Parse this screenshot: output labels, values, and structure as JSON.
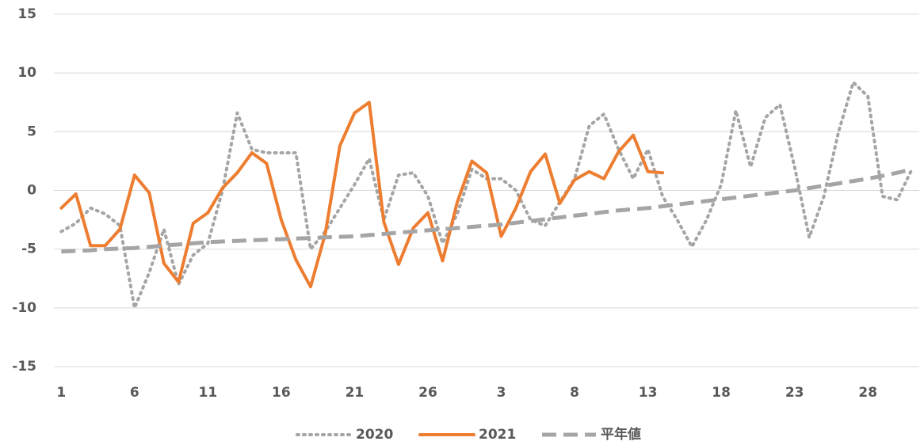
{
  "chart_data": {
    "type": "line",
    "categories": [
      "1",
      null,
      null,
      null,
      null,
      "6",
      null,
      null,
      null,
      null,
      "11",
      null,
      null,
      null,
      null,
      "16",
      null,
      null,
      null,
      null,
      "21",
      null,
      null,
      null,
      null,
      "26",
      null,
      null,
      null,
      null,
      "3",
      null,
      null,
      null,
      null,
      "8",
      null,
      null,
      null,
      null,
      "13",
      null,
      null,
      null,
      null,
      "18",
      null,
      null,
      null,
      null,
      "23",
      null,
      null,
      null,
      null,
      "28",
      null,
      null,
      null
    ],
    "series": [
      {
        "name": "2020",
        "color": "#a5a5a5",
        "style": "dotted",
        "values": [
          -3.5,
          -2.8,
          -1.5,
          -2.0,
          -3.0,
          -10.0,
          -7.0,
          -3.3,
          -8.0,
          -5.5,
          -4.5,
          0,
          6.6,
          3.5,
          3.2,
          3.2,
          3.2,
          -5.0,
          -3.5,
          -1.5,
          0.5,
          2.7,
          -2.5,
          1.3,
          1.5,
          -0.5,
          -4.5,
          -2.0,
          1.8,
          1.0,
          1.0,
          0,
          -2.5,
          -3.0,
          -1.0,
          1.0,
          5.5,
          6.5,
          3.5,
          1.0,
          3.5,
          -0.5,
          -2.5,
          -4.8,
          -2.5,
          0.5,
          6.8,
          2.0,
          6.2,
          7.3,
          2.0,
          -4.0,
          -0.5,
          5.0,
          9.2,
          8.0,
          -0.5,
          -0.8,
          1.8
        ]
      },
      {
        "name": "2021",
        "color": "#ed7d31",
        "style": "solid",
        "values": [
          -1.5,
          -0.3,
          -4.7,
          -4.7,
          -3.3,
          1.3,
          -0.2,
          -6.2,
          -7.8,
          -2.8,
          -1.9,
          0.2,
          1.5,
          3.2,
          2.3,
          -2.5,
          -5.9,
          -8.2,
          -3.7,
          3.8,
          6.6,
          7.5,
          -2.7,
          -6.3,
          -3.2,
          -1.9,
          -6.0,
          -1.0,
          2.5,
          1.5,
          -3.9,
          -1.5,
          1.6,
          3.1,
          -1.1,
          0.9,
          1.6,
          1.0,
          3.3,
          4.7,
          1.6,
          1.5,
          null,
          null,
          null,
          null,
          null,
          null,
          null,
          null,
          null,
          null,
          null,
          null,
          null,
          null,
          null,
          null,
          null
        ]
      },
      {
        "name": "平年値",
        "color": "#a5a5a5",
        "style": "dashed",
        "values": [
          -5.2,
          -5.15,
          -5.1,
          -5.0,
          -4.95,
          -4.9,
          -4.8,
          -4.7,
          -4.6,
          -4.5,
          -4.4,
          -4.35,
          -4.3,
          -4.25,
          -4.2,
          -4.15,
          -4.1,
          -4.05,
          -4.0,
          -3.95,
          -3.9,
          -3.8,
          -3.7,
          -3.6,
          -3.5,
          -3.4,
          -3.3,
          -3.2,
          -3.1,
          -3.0,
          -2.9,
          -2.75,
          -2.6,
          -2.45,
          -2.3,
          -2.15,
          -2.0,
          -1.85,
          -1.7,
          -1.6,
          -1.5,
          -1.35,
          -1.2,
          -1.05,
          -0.9,
          -0.75,
          -0.6,
          -0.45,
          -0.3,
          -0.15,
          0,
          0.2,
          0.4,
          0.6,
          0.8,
          1.0,
          1.25,
          1.5,
          1.8
        ]
      }
    ],
    "ylim": [
      -15,
      15
    ],
    "yticks": [
      -15,
      -10,
      -5,
      0,
      5,
      10,
      15
    ],
    "grid": true,
    "legend": "bottom"
  }
}
